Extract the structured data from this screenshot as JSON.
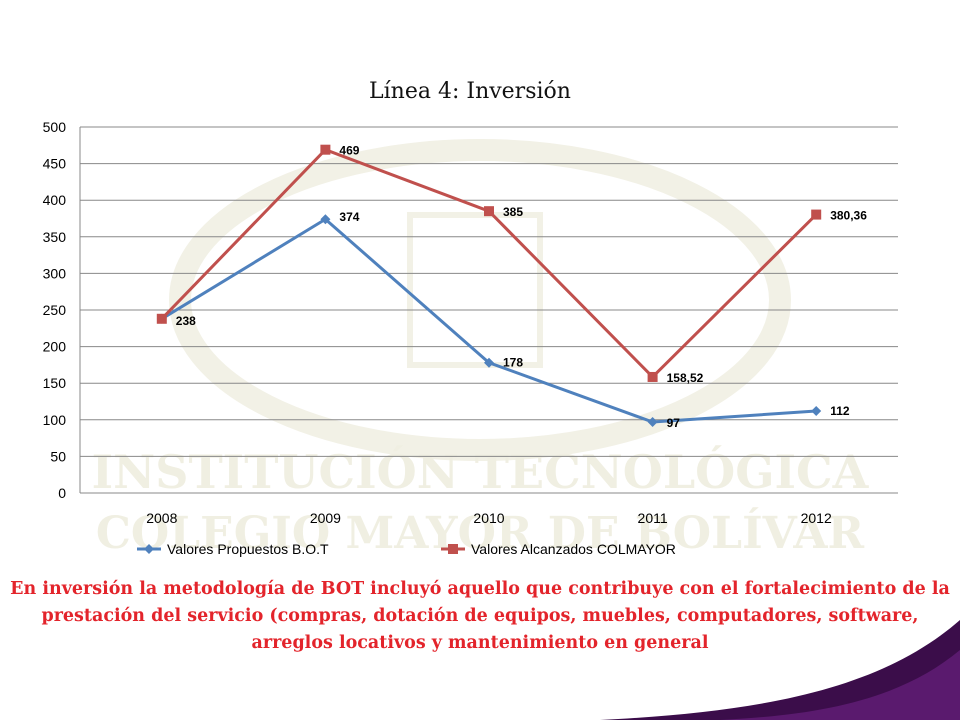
{
  "colors": {
    "series_blue": "#4F81BD",
    "series_red": "#C0504D",
    "caption_red": "#E3242B",
    "grid": "#888888",
    "corner_purple": "#3B0D4A"
  },
  "watermark": {
    "line1": "INSTITUCIÓN TECNOLÓGICA",
    "line2": "COLEGIO MAYOR DE BOLÍVAR"
  },
  "chart_data": {
    "type": "line",
    "title": "Línea 4:   Inversión",
    "categories": [
      "2008",
      "2009",
      "2010",
      "2011",
      "2012"
    ],
    "ylim": [
      0,
      500
    ],
    "yticks": [
      0,
      50,
      100,
      150,
      200,
      250,
      300,
      350,
      400,
      450,
      500
    ],
    "grid": true,
    "legend_position": "bottom",
    "series": [
      {
        "name": "Valores Propuestos B.O.T",
        "color": "#4F81BD",
        "marker": "diamond",
        "values": [
          238,
          374,
          178,
          97,
          112
        ],
        "labels": [
          "",
          "374",
          "178",
          "97",
          "112"
        ]
      },
      {
        "name": "Valores Alcanzados COLMAYOR",
        "color": "#C0504D",
        "marker": "square",
        "values": [
          238,
          469,
          385,
          158.52,
          380.36
        ],
        "labels": [
          "238",
          "469",
          "385",
          "158,52",
          "380,36"
        ]
      }
    ]
  },
  "caption": {
    "text": "En inversión la metodología de BOT incluyó aquello que contribuye con el fortalecimiento de la prestación del servicio  (compras, dotación de  equipos, muebles, computadores, software, arreglos locativos y mantenimiento en general"
  }
}
